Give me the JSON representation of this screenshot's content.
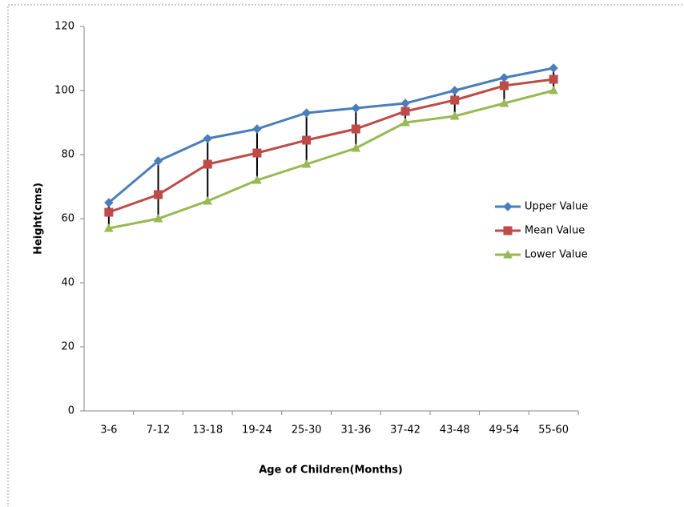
{
  "chart_data": {
    "type": "line",
    "x_label": "Age of Children(Months)",
    "y_label": "Height(cms)",
    "categories": [
      "3-6",
      "7-12",
      "13-18",
      "19-24",
      "25-30",
      "31-36",
      "37-42",
      "43-48",
      "49-54",
      "55-60"
    ],
    "series": [
      {
        "name": "Upper Value",
        "color": "#4a7ebb",
        "marker": "diamond",
        "values": [
          65,
          78,
          85,
          88,
          93,
          94.5,
          96,
          100,
          104,
          107
        ]
      },
      {
        "name": "Mean Value",
        "color": "#be4b48",
        "marker": "square",
        "values": [
          62,
          67.5,
          77,
          80.5,
          84.5,
          88,
          93.5,
          97,
          101.5,
          103.5
        ]
      },
      {
        "name": "Lower Value",
        "color": "#98b954",
        "marker": "triangle",
        "values": [
          57,
          60,
          65.5,
          72,
          77,
          82,
          90,
          92,
          96,
          100
        ]
      }
    ],
    "high_low_lines": true,
    "ylim": [
      0,
      120
    ],
    "yticks": [
      0,
      20,
      40,
      60,
      80,
      100,
      120
    ],
    "legend": "right"
  }
}
